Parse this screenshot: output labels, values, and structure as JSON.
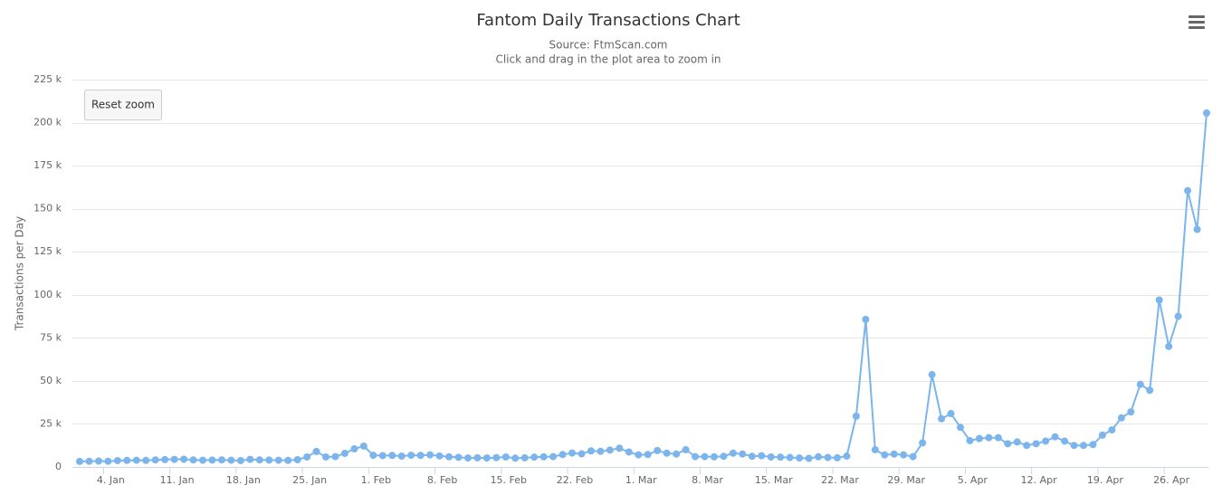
{
  "chart_data": {
    "type": "line",
    "title": "Fantom Daily Transactions Chart",
    "subtitle": "Source: FtmScan.com",
    "subtitle2": "Click and drag in the plot area to zoom in",
    "y_label": "Transactions per Day",
    "reset_button": "Reset zoom",
    "color": "#7cb5ec",
    "grid": true,
    "ylim": [
      0,
      225000
    ],
    "yticks": [
      0,
      {
        "value": 25000,
        "label": "25 k"
      },
      {
        "value": 50000,
        "label": "50 k"
      },
      {
        "value": 75000,
        "label": "75 k"
      },
      {
        "value": 100000,
        "label": "100 k"
      },
      {
        "value": 125000,
        "label": "125 k"
      },
      {
        "value": 150000,
        "label": "150 k"
      },
      {
        "value": 175000,
        "label": "175 k"
      },
      {
        "value": 200000,
        "label": "200 k"
      },
      {
        "value": 225000,
        "label": "225 k"
      }
    ],
    "categories": [
      null,
      null,
      null,
      "4. Jan",
      null,
      null,
      null,
      null,
      null,
      null,
      "11. Jan",
      null,
      null,
      null,
      null,
      null,
      null,
      "18. Jan",
      null,
      null,
      null,
      null,
      null,
      null,
      "25. Jan",
      null,
      null,
      null,
      null,
      null,
      null,
      "1. Feb",
      null,
      null,
      null,
      null,
      null,
      null,
      "8. Feb",
      null,
      null,
      null,
      null,
      null,
      null,
      "15. Feb",
      null,
      null,
      null,
      null,
      null,
      null,
      "22. Feb",
      null,
      null,
      null,
      null,
      null,
      null,
      "1. Mar",
      null,
      null,
      null,
      null,
      null,
      null,
      "8. Mar",
      null,
      null,
      null,
      null,
      null,
      null,
      "15. Mar",
      null,
      null,
      null,
      null,
      null,
      null,
      "22. Mar",
      null,
      null,
      null,
      null,
      null,
      null,
      "29. Mar",
      null,
      null,
      null,
      null,
      null,
      null,
      "5. Apr",
      null,
      null,
      null,
      null,
      null,
      null,
      "12. Apr",
      null,
      null,
      null,
      null,
      null,
      null,
      "19. Apr",
      null,
      null,
      null,
      null,
      null,
      null,
      "26. Apr",
      null,
      null,
      null,
      null
    ],
    "values": [
      3200,
      3300,
      3400,
      3300,
      3700,
      3800,
      3900,
      3800,
      4100,
      4300,
      4400,
      4500,
      4100,
      3900,
      4000,
      4100,
      3900,
      3700,
      4400,
      4100,
      4000,
      3900,
      3800,
      4200,
      5800,
      9000,
      5800,
      6000,
      7900,
      10500,
      12100,
      6800,
      6600,
      6700,
      6300,
      6800,
      6700,
      7000,
      6400,
      5900,
      5600,
      5200,
      5300,
      5200,
      5400,
      5800,
      5100,
      5300,
      5700,
      5900,
      6000,
      7200,
      8100,
      7600,
      9300,
      9100,
      9800,
      10900,
      8700,
      7000,
      7200,
      9500,
      8000,
      7500,
      10000,
      6000,
      6000,
      5900,
      6200,
      8000,
      7500,
      6200,
      6500,
      5800,
      5700,
      5500,
      5200,
      5000,
      5900,
      5500,
      5300,
      6300,
      29500,
      85700,
      10000,
      7000,
      7500,
      7000,
      6000,
      14000,
      53600,
      28000,
      31000,
      23000,
      15300,
      16500,
      17000,
      17000,
      13500,
      14500,
      12500,
      13500,
      15000,
      17500,
      15000,
      12500,
      12500,
      13000,
      18500,
      21500,
      28500,
      32000,
      48000,
      44500,
      97000,
      70000,
      87500,
      160500,
      138000,
      205600
    ]
  }
}
